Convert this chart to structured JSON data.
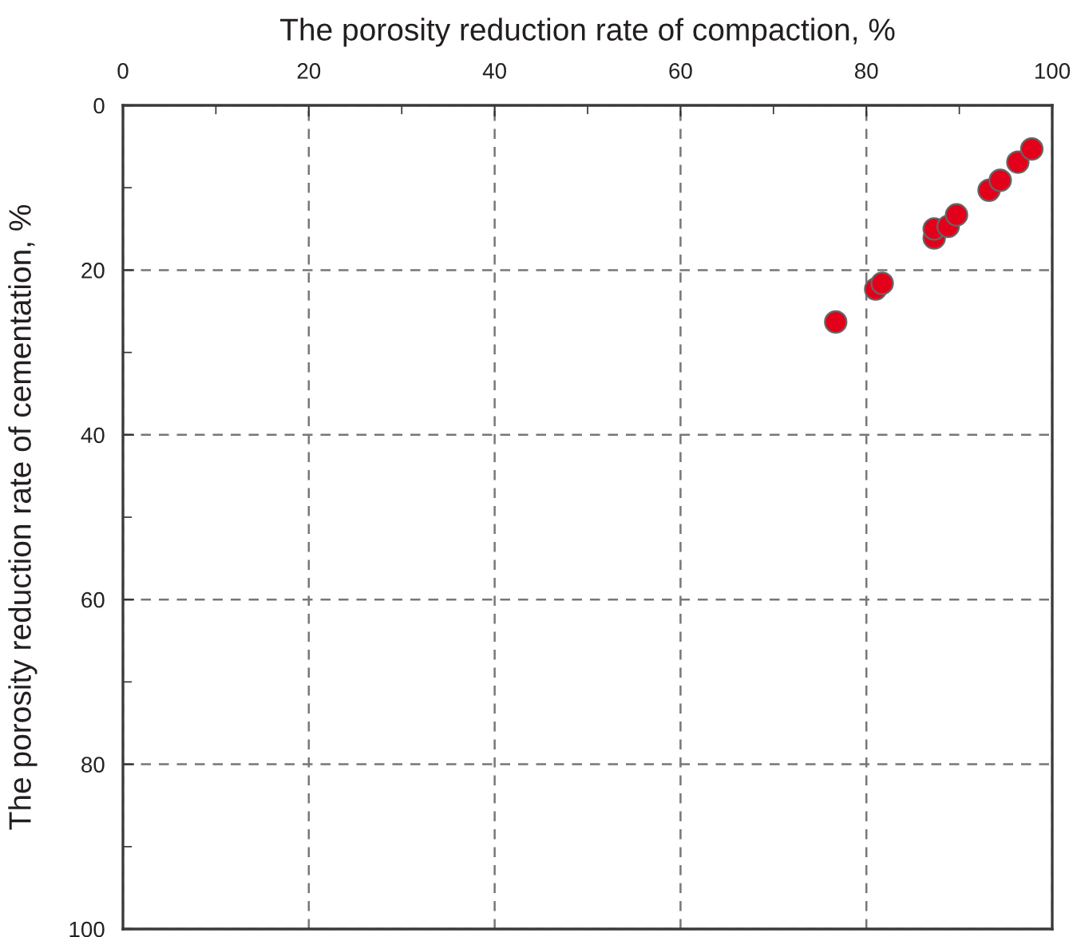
{
  "chart_data": {
    "type": "scatter",
    "xlabel": "The porosity reduction rate of compaction, %",
    "ylabel": "The porosity reduction rate of cementation, %",
    "x": [
      76.7,
      81.0,
      81.7,
      87.3,
      87.3,
      88.8,
      89.7,
      93.2,
      94.4,
      96.3,
      97.8
    ],
    "series": [
      {
        "color": "#e2001a",
        "values": [
          26.3,
          22.3,
          21.6,
          16.1,
          15.0,
          14.7,
          13.3,
          10.3,
          9.1,
          6.9,
          5.3
        ]
      }
    ],
    "xlim": [
      0,
      100
    ],
    "xticks": [
      0,
      20,
      40,
      60,
      80,
      100
    ],
    "ylim": [
      100,
      0
    ],
    "yticks": [
      0,
      20,
      40,
      60,
      80,
      100
    ],
    "grid": true,
    "marker": "circle",
    "legend": false
  }
}
